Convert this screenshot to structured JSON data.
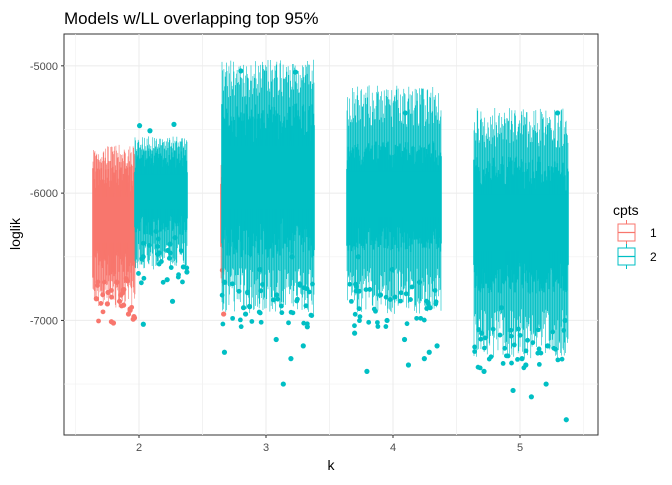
{
  "chart_data": {
    "type": "boxplot",
    "title": "Models w/LL overlapping top 95%",
    "xlabel": "k",
    "ylabel": "loglik",
    "x_categories": [
      "2",
      "3",
      "4",
      "5"
    ],
    "y_ticks": [
      -5000,
      -6000,
      -7000
    ],
    "ylim": [
      -7900,
      -4750
    ],
    "grid": true,
    "legend": {
      "title": "cpts",
      "placement": "right",
      "entries": [
        {
          "label": "1",
          "color": "#F8766D"
        },
        {
          "label": "2",
          "color": "#00BFC4"
        }
      ]
    },
    "groups": [
      {
        "k": "2",
        "cpts": "1",
        "box_q1": -6550,
        "box_q3": -5900,
        "whisker_low": -6900,
        "whisker_high": -5620,
        "outliers": [
          -6700,
          -6760,
          -6800,
          -6850,
          -6880,
          -6920,
          -6950,
          -6980,
          -7010,
          -7020,
          -6990,
          -6970,
          -6780,
          -6830,
          -6870,
          -6910
        ]
      },
      {
        "k": "2",
        "cpts": "2",
        "box_q1": -6250,
        "box_q3": -5750,
        "whisker_low": -6600,
        "whisker_high": -5550,
        "outliers": [
          -5460,
          -5470,
          -5510,
          -6300,
          -6350,
          -6400,
          -6450,
          -6500,
          -6580,
          -6620,
          -6680,
          -6850,
          -7030
        ]
      },
      {
        "k": "3",
        "cpts": "1",
        "box_q1": -6350,
        "box_q3": -5850,
        "whisker_low": -6800,
        "whisker_high": -5700,
        "outliers": [
          -6950
        ]
      },
      {
        "k": "3",
        "cpts": "2",
        "box_q1": -6350,
        "box_q3": -5450,
        "whisker_low": -6950,
        "whisker_high": -4950,
        "outliers": [
          -5040,
          -5050,
          -6500,
          -6600,
          -6700,
          -6800,
          -6900,
          -6950,
          -7050,
          -7150,
          -7200,
          -7250,
          -7300,
          -7500
        ]
      },
      {
        "k": "4",
        "cpts": "2",
        "box_q1": -6350,
        "box_q3": -5700,
        "whisker_low": -6950,
        "whisker_high": -5150,
        "outliers": [
          -5370,
          -6500,
          -6600,
          -6700,
          -6800,
          -6900,
          -7000,
          -7100,
          -7150,
          -7200,
          -7250,
          -7300,
          -7350,
          -7400
        ]
      },
      {
        "k": "5",
        "cpts": "2",
        "box_q1": -6650,
        "box_q3": -5850,
        "whisker_low": -7300,
        "whisker_high": -5330,
        "outliers": [
          -5370,
          -6900,
          -7000,
          -7100,
          -7200,
          -7300,
          -7350,
          -7400,
          -7500,
          -7550,
          -7600,
          -7780
        ]
      }
    ]
  }
}
